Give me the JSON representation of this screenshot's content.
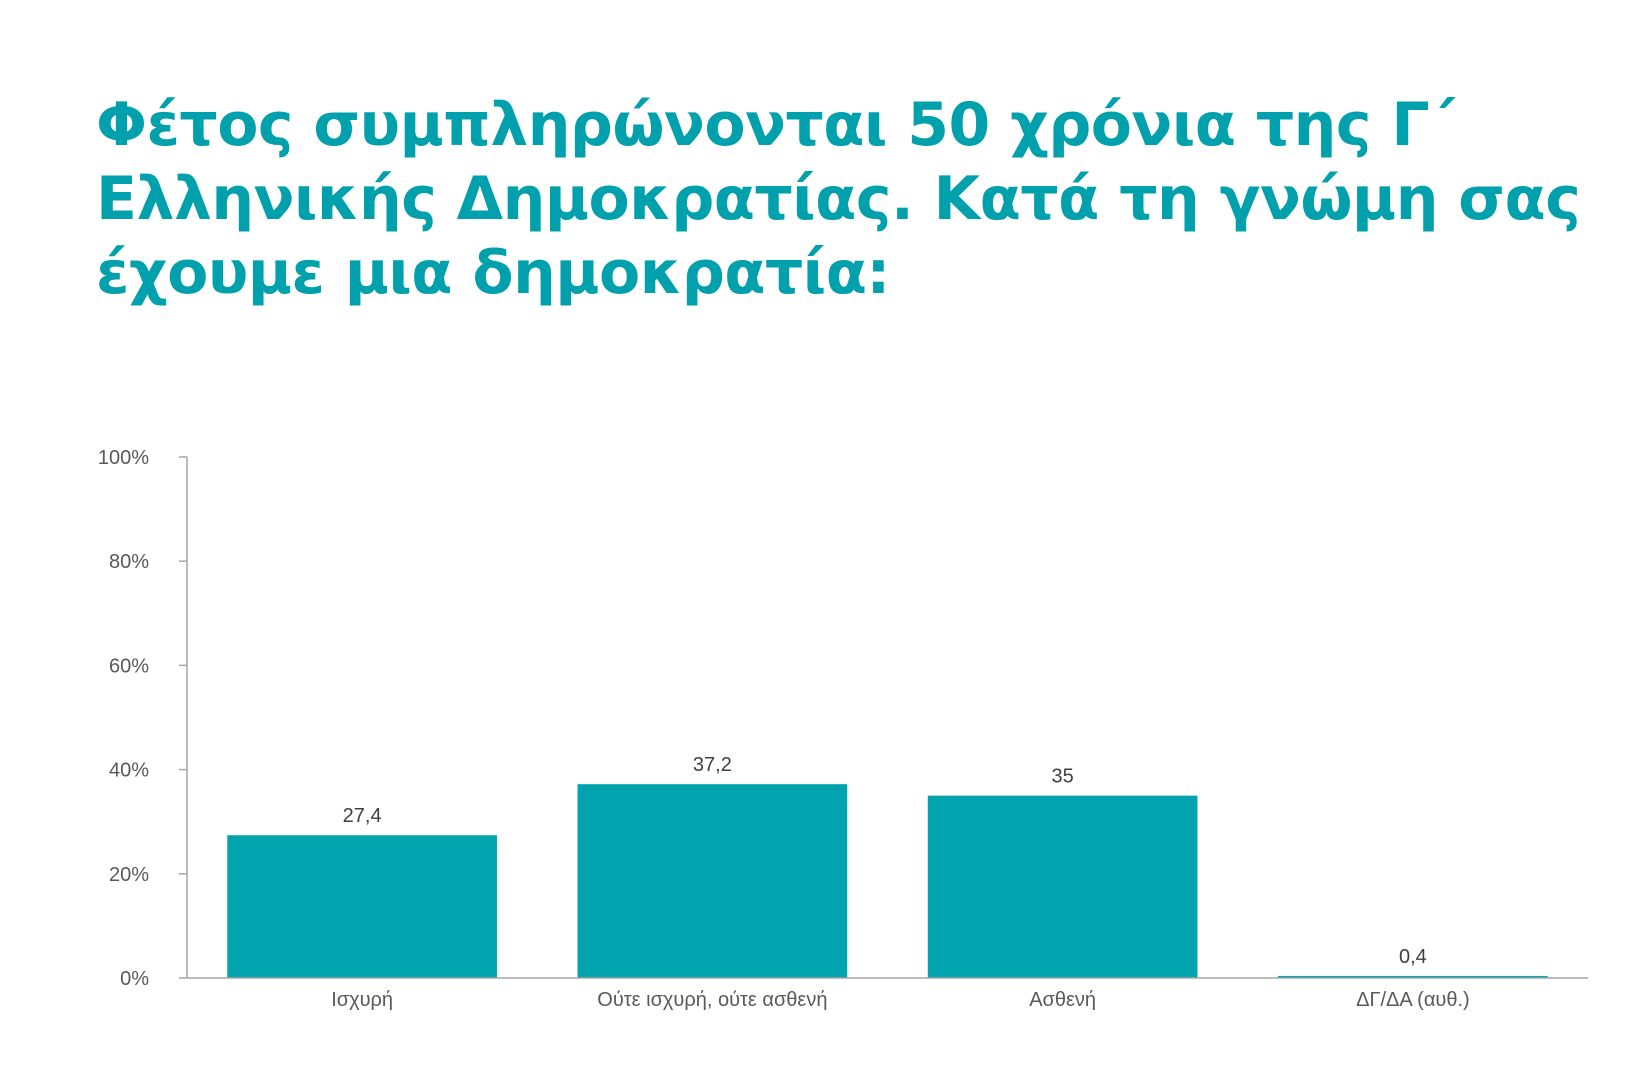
{
  "title": "Φέτος συμπληρώνονται 50 χρόνια της Γ΄ Ελληνικής Δημοκρατίας. Κατά τη γνώμη σας έχουμε μια δημοκρατία:",
  "chart_data": {
    "type": "bar",
    "title": "Φέτος συμπληρώνονται 50 χρόνια της Γ΄ Ελληνικής Δημοκρατίας. Κατά τη γνώμη σας έχουμε μια δημοκρατία:",
    "xlabel": "",
    "ylabel": "",
    "categories": [
      "Ισχυρή",
      "Ούτε ισχυρή, ούτε ασθενή",
      "Ασθενή",
      "ΔΓ/ΔΑ (αυθ.)"
    ],
    "values": [
      27.4,
      37.2,
      35,
      0.4
    ],
    "value_labels": [
      "27,4",
      "37,2",
      "35",
      "0,4"
    ],
    "ylim": [
      0,
      100
    ],
    "yticks": [
      0,
      20,
      40,
      60,
      80,
      100
    ],
    "ytick_labels": [
      "0%",
      "20%",
      "40%",
      "60%",
      "80%",
      "100%"
    ],
    "grid": false,
    "legend": "none",
    "bar_color": "#00a3ae",
    "axis_color": "#a6a6a6"
  }
}
